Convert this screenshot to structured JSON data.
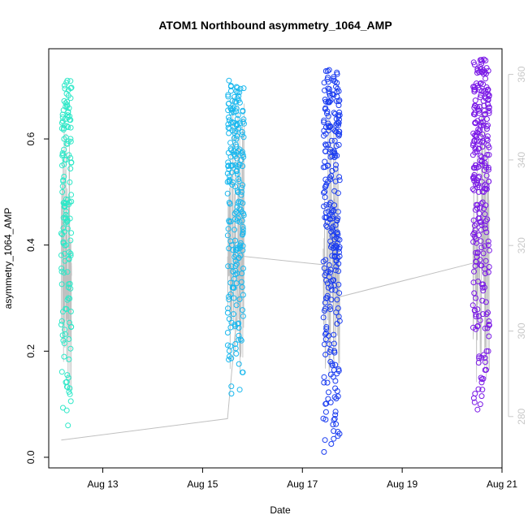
{
  "chart_data": {
    "type": "scatter",
    "title": "ATOM1 Northbound asymmetry_1064_AMP",
    "xlabel": "Date",
    "ylabel": "asymmetry_1064_AMP",
    "x_ticks": [
      {
        "value": "2020-08-13",
        "label": "Aug 13"
      },
      {
        "value": "2020-08-15",
        "label": "Aug 15"
      },
      {
        "value": "2020-08-17",
        "label": "Aug 17"
      },
      {
        "value": "2020-08-19",
        "label": "Aug 19"
      },
      {
        "value": "2020-08-21",
        "label": "Aug 21"
      }
    ],
    "xlim": [
      "2020-08-11 22:00",
      "2020-08-21 00:00"
    ],
    "ylim": [
      -0.02,
      0.77
    ],
    "y_ticks": [
      0.0,
      0.2,
      0.4,
      0.6
    ],
    "y2lim": [
      268,
      366
    ],
    "y2_ticks": [
      280,
      300,
      320,
      340,
      360
    ],
    "grid": false,
    "colors": {
      "axis": "#000000",
      "secondary_axis": "#c8c8c8",
      "line": "#c0c0c0",
      "series": [
        "#2ee8c8",
        "#1ab8ee",
        "#1a3cf0",
        "#7a18e6"
      ]
    },
    "series": [
      {
        "x_start": "2020-08-12 04:00",
        "x_end": "2020-08-12 09:00",
        "y_min": 0.06,
        "y_max": 0.71,
        "n": 150,
        "sample_y": [
          0.71,
          0.67,
          0.65,
          0.63,
          0.6,
          0.58,
          0.55,
          0.52,
          0.5,
          0.48,
          0.45,
          0.42,
          0.4,
          0.38,
          0.35,
          0.32,
          0.3,
          0.28,
          0.25,
          0.23,
          0.22,
          0.15,
          0.13,
          0.06
        ]
      },
      {
        "x_start": "2020-08-15 12:00",
        "x_end": "2020-08-15 20:00",
        "y_min": 0.12,
        "y_max": 0.71,
        "n": 230,
        "sample_y": [
          0.71,
          0.69,
          0.67,
          0.65,
          0.63,
          0.6,
          0.57,
          0.55,
          0.52,
          0.5,
          0.48,
          0.45,
          0.43,
          0.4,
          0.38,
          0.35,
          0.32,
          0.3,
          0.27,
          0.25,
          0.22,
          0.19,
          0.16,
          0.12
        ]
      },
      {
        "x_start": "2020-08-17 10:00",
        "x_end": "2020-08-17 18:00",
        "y_min": 0.01,
        "y_max": 0.73,
        "n": 280,
        "sample_y": [
          0.73,
          0.71,
          0.69,
          0.67,
          0.65,
          0.63,
          0.61,
          0.58,
          0.55,
          0.52,
          0.48,
          0.45,
          0.42,
          0.4,
          0.37,
          0.34,
          0.3,
          0.28,
          0.18,
          0.13,
          0.11,
          0.08,
          0.04,
          0.01
        ]
      },
      {
        "x_start": "2020-08-20 10:00",
        "x_end": "2020-08-20 18:00",
        "y_min": 0.09,
        "y_max": 0.75,
        "n": 280,
        "sample_y": [
          0.75,
          0.74,
          0.66,
          0.63,
          0.6,
          0.57,
          0.55,
          0.52,
          0.5,
          0.47,
          0.45,
          0.42,
          0.4,
          0.37,
          0.35,
          0.32,
          0.3,
          0.27,
          0.25,
          0.2,
          0.15,
          0.12,
          0.1,
          0.09
        ]
      }
    ],
    "secondary_line": {
      "name": "",
      "points": [
        {
          "x": "2020-08-12 04:00",
          "y": 274.5
        },
        {
          "x": "2020-08-15 12:00",
          "y": 279.5
        },
        {
          "x": "2020-08-15 19:00",
          "y": 317.5
        },
        {
          "x": "2020-08-17 10:00",
          "y": 315.5
        },
        {
          "x": "2020-08-17 18:00",
          "y": 308.0
        },
        {
          "x": "2020-08-20 11:00",
          "y": 316.0
        },
        {
          "x": "2020-08-20 18:00",
          "y": 318.0
        }
      ]
    }
  }
}
